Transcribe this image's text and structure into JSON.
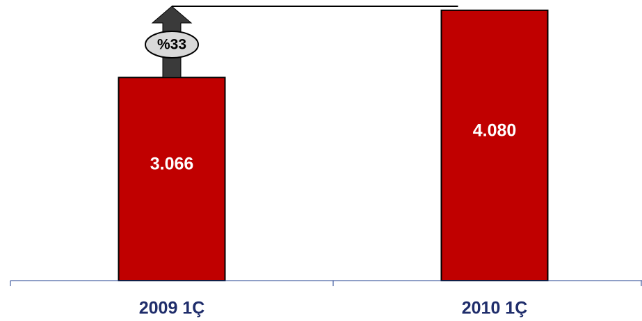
{
  "chart_data": {
    "type": "bar",
    "categories": [
      "2009 1Ç",
      "2010 1Ç"
    ],
    "values": [
      3066,
      4080
    ],
    "value_labels": [
      "3.066",
      "4.080"
    ],
    "ylim": [
      0,
      4130
    ],
    "grid": false,
    "legend": "none",
    "annotation": {
      "text": "%33",
      "type": "growth-arrow",
      "from_category": "2009 1Ç",
      "to_category": "2010 1Ç"
    }
  },
  "colors": {
    "bar_fill": "#c00000",
    "bar_stroke": "#000000",
    "bar_label": "#ffffff",
    "tick_label": "#1f2d6b",
    "axis": "#1f3f8f",
    "arrow_fill": "#3a3a3a",
    "badge_fill": "#d9d9d9",
    "badge_stroke": "#000000",
    "badge_text": "#000000",
    "connector": "#000000"
  }
}
